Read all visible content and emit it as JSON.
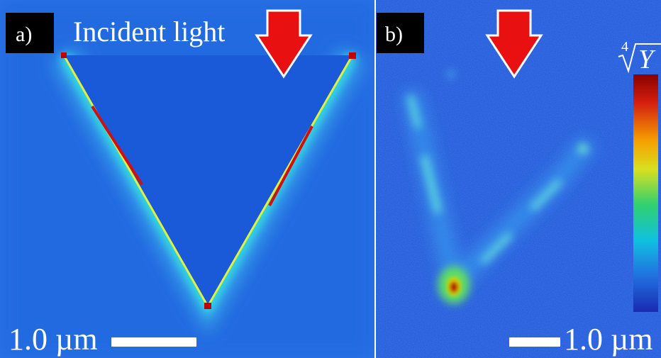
{
  "panels": [
    {
      "label": "a)",
      "caption": "Incident light",
      "scale_bar": "1.0 µm"
    },
    {
      "label": "b)",
      "scale_bar": "1.0 µm",
      "colorbar_label": {
        "index": "4",
        "symbol": "Y"
      }
    }
  ]
}
